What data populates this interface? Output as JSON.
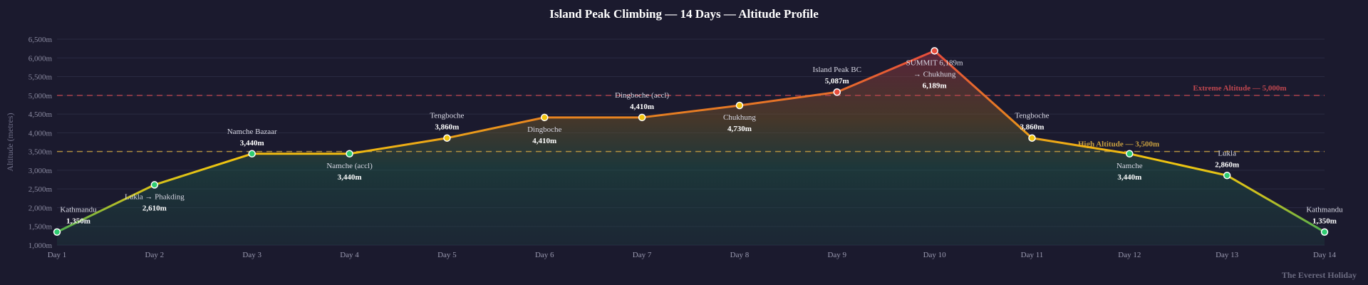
{
  "chart_data": {
    "type": "area",
    "title": "Island Peak Climbing — 14 Days — Altitude Profile",
    "ylabel": "Altitude (metres)",
    "xlabel": "",
    "ylim": [
      1000,
      6500
    ],
    "yticks": [
      1000,
      1500,
      2000,
      2500,
      3000,
      3500,
      4000,
      4500,
      5000,
      5500,
      6000,
      6500
    ],
    "ytick_labels": [
      "1,000m",
      "1,500m",
      "2,000m",
      "2,500m",
      "3,000m",
      "3,500m",
      "4,000m",
      "4,500m",
      "5,000m",
      "5,500m",
      "6,000m",
      "6,500m"
    ],
    "grid": true,
    "categories": [
      "Day 1",
      "Day 2",
      "Day 3",
      "Day 4",
      "Day 5",
      "Day 6",
      "Day 7",
      "Day 8",
      "Day 9",
      "Day 10",
      "Day 11",
      "Day 12",
      "Day 13",
      "Day 14"
    ],
    "values": [
      1350,
      2610,
      3440,
      3440,
      3860,
      4410,
      4410,
      4730,
      5087,
      6189,
      3860,
      3440,
      2860,
      1350
    ],
    "point_labels": [
      [
        "Kathmandu"
      ],
      [
        "Lukla → Phakding"
      ],
      [
        "Namche Bazaar"
      ],
      [
        "Namche (accl)"
      ],
      [
        "Tengboche"
      ],
      [
        "Dingboche"
      ],
      [
        "Dingboche (accl)"
      ],
      [
        "Chukhung"
      ],
      [
        "Island Peak BC"
      ],
      [
        "SUMMIT 6,189m",
        "→ Chukhung"
      ],
      [
        "Tengboche"
      ],
      [
        "Namche"
      ],
      [
        "Lukla"
      ],
      [
        "Kathmandu"
      ]
    ],
    "value_labels": [
      "1,350m",
      "2,610m",
      "3,440m",
      "3,440m",
      "3,860m",
      "4,410m",
      "4,410m",
      "4,730m",
      "5,087m",
      "6,189m",
      "3,860m",
      "3,440m",
      "2,860m",
      "1,350m"
    ],
    "reference_lines": [
      {
        "value": 5000,
        "label": "Extreme Altitude — 5,000m",
        "color": "#c0474f"
      },
      {
        "value": 3500,
        "label": "High Altitude — 3,500m",
        "color": "#c9a040"
      }
    ],
    "colors": {
      "low": "#2ecc71",
      "mid": "#f1c40f",
      "high": "#e74c3c",
      "orange": "#e67e22",
      "grid": "#2a2a42",
      "background": "#1b1a2e"
    }
  },
  "watermark": "The Everest Holiday"
}
